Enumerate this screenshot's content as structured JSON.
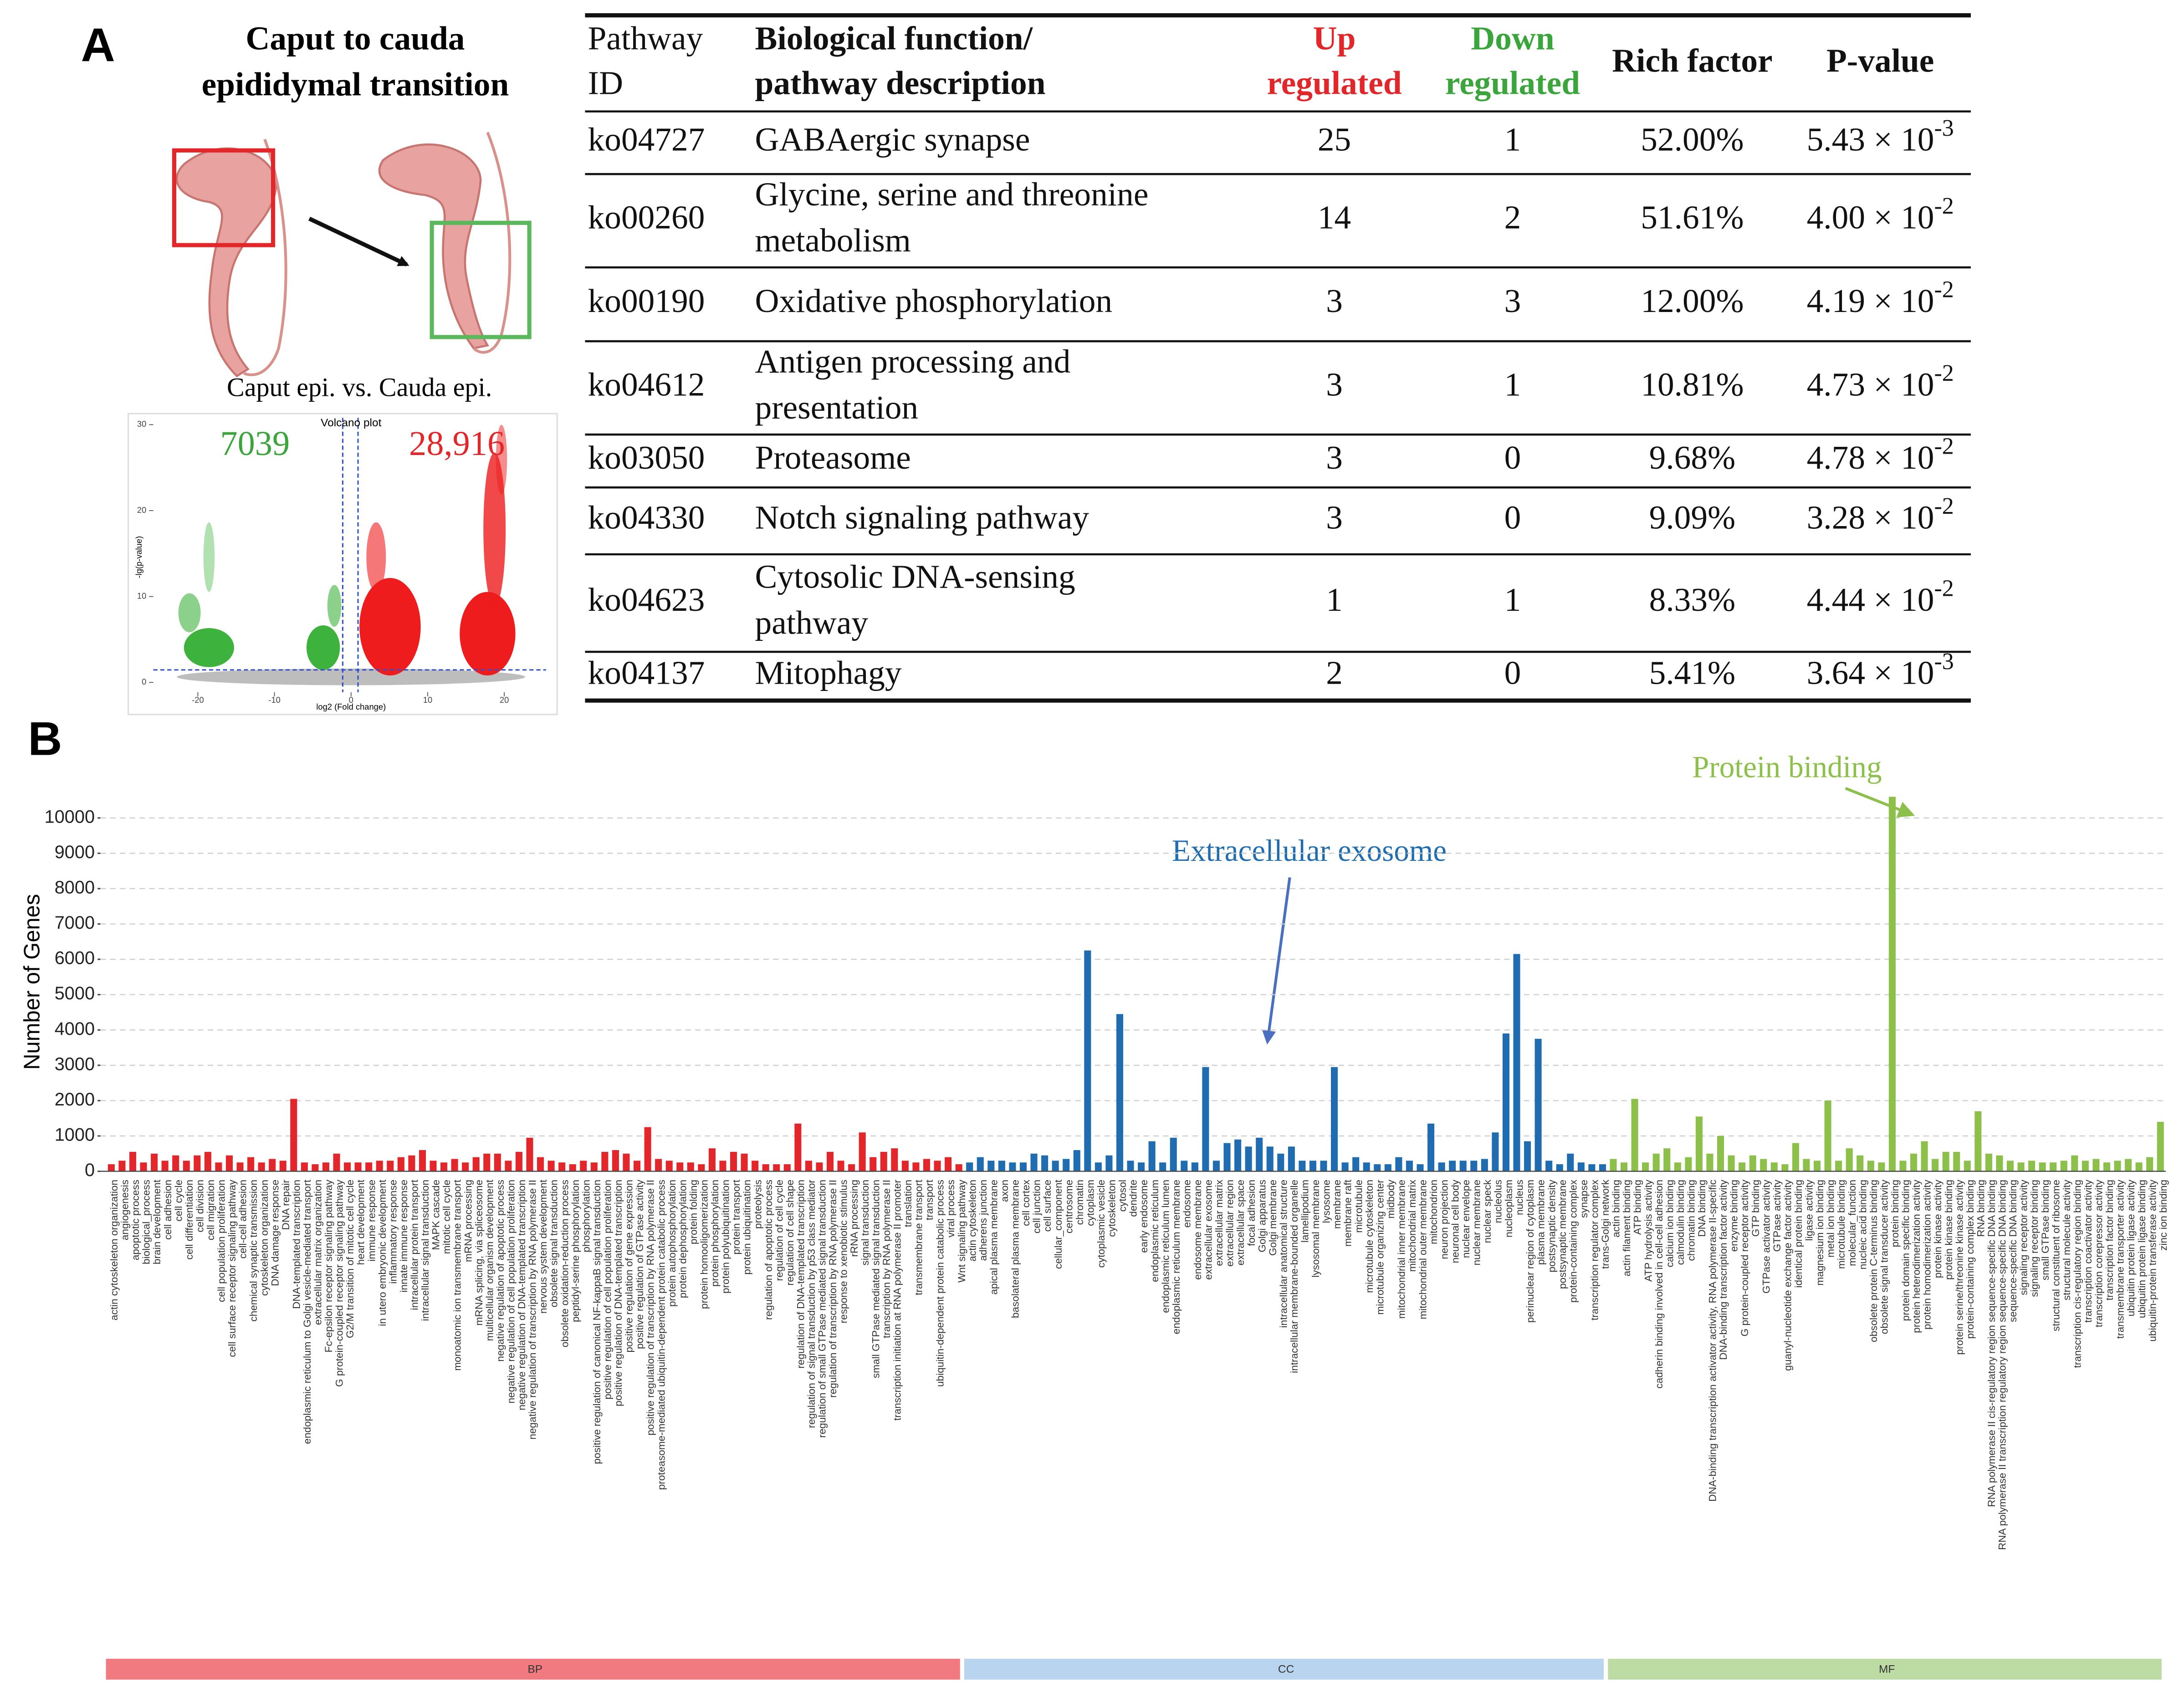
{
  "panel_a": {
    "label": "A",
    "illustration_title": [
      "Caput to cauda",
      "epididymal transition"
    ],
    "volcano": {
      "subtitle": "Caput epi. vs. Cauda epi.",
      "title": "Volcano plot",
      "down_count": "7039",
      "up_count": "28,916",
      "xlabel": "log2 (Fold change)",
      "ylabel": "-lg(p-value)",
      "xticks": [
        -20,
        -10,
        0,
        10,
        20
      ],
      "yticks": [
        0,
        10,
        20,
        30
      ]
    },
    "table": {
      "header": {
        "id": [
          "Pathway",
          "ID"
        ],
        "description": [
          "Biological function/",
          "pathway description"
        ],
        "up": [
          "Up",
          "regulated"
        ],
        "down": [
          "Down",
          "regulated"
        ],
        "rich_factor": "Rich factor",
        "p_value": "P-value"
      },
      "rows": [
        {
          "id": "ko04727",
          "description": [
            "GABAergic synapse"
          ],
          "up": 25,
          "down": 1,
          "rich_factor": "52.00%",
          "p_value": {
            "base": "5.43 × 10",
            "exponent": "-3"
          }
        },
        {
          "id": "ko00260",
          "description": [
            "Glycine, serine and threonine",
            "metabolism"
          ],
          "up": 14,
          "down": 2,
          "rich_factor": "51.61%",
          "p_value": {
            "base": "4.00 × 10",
            "exponent": "-2"
          }
        },
        {
          "id": "ko00190",
          "description": [
            "Oxidative phosphorylation"
          ],
          "up": 3,
          "down": 3,
          "rich_factor": "12.00%",
          "p_value": {
            "base": "4.19 × 10",
            "exponent": "-2"
          }
        },
        {
          "id": "ko04612",
          "description": [
            "Antigen processing and",
            "presentation"
          ],
          "up": 3,
          "down": 1,
          "rich_factor": "10.81%",
          "p_value": {
            "base": "4.73 × 10",
            "exponent": "-2"
          }
        },
        {
          "id": "ko03050",
          "description": [
            "Proteasome"
          ],
          "up": 3,
          "down": 0,
          "rich_factor": "9.68%",
          "p_value": {
            "base": "4.78 × 10",
            "exponent": "-2"
          }
        },
        {
          "id": "ko04330",
          "description": [
            "Notch signaling pathway"
          ],
          "up": 3,
          "down": 0,
          "rich_factor": "9.09%",
          "p_value": {
            "base": "3.28 × 10",
            "exponent": "-2"
          }
        },
        {
          "id": "ko04623",
          "description": [
            "Cytosolic DNA-sensing",
            "pathway"
          ],
          "up": 1,
          "down": 1,
          "rich_factor": "8.33%",
          "p_value": {
            "base": "4.44 × 10",
            "exponent": "-2"
          }
        },
        {
          "id": "ko04137",
          "description": [
            "Mitophagy"
          ],
          "up": 2,
          "down": 0,
          "rich_factor": "5.41%",
          "p_value": {
            "base": "3.64 × 10",
            "exponent": "-3"
          }
        }
      ]
    }
  },
  "panel_b": {
    "label": "B"
  },
  "chart_data": {
    "type": "bar",
    "ylabel": "Number of Genes",
    "ylim": [
      0,
      10800
    ],
    "yticks": [
      0,
      1000,
      2000,
      3000,
      4000,
      5000,
      6000,
      7000,
      8000,
      9000,
      10000
    ],
    "grid": true,
    "annotations": [
      {
        "text": "Protein binding",
        "color": "#8cc04b"
      },
      {
        "text": "Extracellular exosome",
        "color": "#1f6db0"
      }
    ],
    "groups": [
      {
        "name": "BP",
        "color": "#e3262a",
        "strip_color": "#f07a80",
        "categories": [
          "actin cytoskeleton organization",
          "angiogenesis",
          "apoptotic process",
          "biological_process",
          "brain development",
          "cell adhesion",
          "cell cycle",
          "cell differentiation",
          "cell division",
          "cell migration",
          "cell population proliferation",
          "cell surface receptor signaling pathway",
          "cell-cell adhesion",
          "chemical synaptic transmission",
          "cytoskeleton organization",
          "DNA damage response",
          "DNA repair",
          "DNA-templated transcription",
          "endoplasmic reticulum to Golgi vesicle-mediated transport",
          "extracellular matrix organization",
          "Fc-epsilon receptor signaling pathway",
          "G protein-coupled receptor signaling pathway",
          "G2/M transition of mitotic cell cycle",
          "heart development",
          "immune response",
          "in utero embryonic development",
          "inflammatory response",
          "innate immune response",
          "intracellular protein transport",
          "intracellular signal transduction",
          "MAPK cascade",
          "mitotic cell cycle",
          "monoatomic ion transmembrane transport",
          "mRNA processing",
          "mRNA splicing, via spliceosome",
          "multicellular organism development",
          "negative regulation of apoptotic process",
          "negative regulation of cell population proliferation",
          "negative regulation of DNA-templated transcription",
          "negative regulation of transcription by RNA polymerase II",
          "nervous system development",
          "obsolete signal transduction",
          "obsolete oxidation-reduction process",
          "peptidyl-serine phosphorylation",
          "phosphorylation",
          "positive regulation of canonical NF-kappaB signal transduction",
          "positive regulation of cell population proliferation",
          "positive regulation of DNA-templated transcription",
          "positive regulation of gene expression",
          "positive regulation of GTPase activity",
          "positive regulation of transcription by RNA polymerase II",
          "proteasome-mediated ubiquitin-dependent protein catabolic process",
          "protein autophosphorylation",
          "protein dephosphorylation",
          "protein folding",
          "protein homooligomerization",
          "protein phosphorylation",
          "protein polyubiquitination",
          "protein transport",
          "protein ubiquitination",
          "proteolysis",
          "regulation of apoptotic process",
          "regulation of cell cycle",
          "regulation of cell shape",
          "regulation of DNA-templated transcription",
          "regulation of signal transduction by p53 class mediator",
          "regulation of small GTPase mediated signal transduction",
          "regulation of transcription by RNA polymerase II",
          "response to xenobiotic stimulus",
          "rRNA processing",
          "signal transduction",
          "small GTPase mediated signal transduction",
          "transcription by RNA polymerase II",
          "transcription initiation at RNA polymerase II promoter",
          "translation",
          "transmembrane transport",
          "transport",
          "ubiquitin-dependent protein catabolic process",
          "viral process",
          "Wnt signaling pathway"
        ],
        "values": [
          200,
          300,
          550,
          250,
          500,
          300,
          450,
          300,
          450,
          550,
          250,
          450,
          250,
          400,
          250,
          350,
          300,
          2050,
          250,
          200,
          250,
          500,
          250,
          250,
          250,
          300,
          300,
          400,
          450,
          600,
          300,
          250,
          350,
          250,
          400,
          500,
          500,
          300,
          550,
          950,
          400,
          300,
          250,
          200,
          300,
          250,
          550,
          600,
          500,
          300,
          1250,
          350,
          300,
          250,
          250,
          200,
          650,
          300,
          550,
          500,
          300,
          200,
          200,
          200,
          1350,
          300,
          250,
          550,
          300,
          200,
          1100,
          400,
          550,
          650,
          300,
          250,
          350,
          300,
          400,
          200
        ]
      },
      {
        "name": "CC",
        "color": "#1f6db0",
        "strip_color": "#b8d4ee",
        "categories": [
          "actin cytoskeleton",
          "adherens junction",
          "apical plasma membrane",
          "axon",
          "basolateral plasma membrane",
          "cell cortex",
          "cell junction",
          "cell surface",
          "cellular_component",
          "centrosome",
          "chromatin",
          "cytoplasm",
          "cytoplasmic vesicle",
          "cytoskeleton",
          "cytosol",
          "dendrite",
          "early endosome",
          "endoplasmic reticulum",
          "endoplasmic reticulum lumen",
          "endoplasmic reticulum membrane",
          "endosome",
          "endosome membrane",
          "extracellular exosome",
          "extracellular matrix",
          "extracellular region",
          "extracellular space",
          "focal adhesion",
          "Golgi apparatus",
          "Golgi membrane",
          "intracellular anatomical structure",
          "intracellular membrane-bounded organelle",
          "lamellipodium",
          "lysosomal membrane",
          "lysosome",
          "membrane",
          "membrane raft",
          "microtubule",
          "microtubule cytoskeleton",
          "microtubule organizing center",
          "midbody",
          "mitochondrial inner membrane",
          "mitochondrial matrix",
          "mitochondrial outer membrane",
          "mitochondrion",
          "neuron projection",
          "neuronal cell body",
          "nuclear envelope",
          "nuclear membrane",
          "nuclear speck",
          "nucleolus",
          "nucleoplasm",
          "nucleus",
          "perinuclear region of cytoplasm",
          "plasma membrane",
          "postsynaptic density",
          "postsynaptic membrane",
          "protein-containing complex",
          "synapse",
          "transcription regulator complex",
          "trans-Golgi network"
        ],
        "values": [
          250,
          400,
          300,
          300,
          250,
          250,
          500,
          450,
          300,
          350,
          600,
          6250,
          250,
          450,
          4450,
          300,
          250,
          850,
          250,
          950,
          300,
          250,
          2950,
          300,
          800,
          900,
          700,
          950,
          700,
          500,
          700,
          300,
          300,
          300,
          2950,
          250,
          400,
          250,
          200,
          200,
          400,
          300,
          200,
          1350,
          250,
          300,
          300,
          300,
          350,
          1100,
          3900,
          6150,
          850,
          3750,
          300,
          200,
          500,
          250,
          200,
          200
        ]
      },
      {
        "name": "MF",
        "color": "#8cc04b",
        "strip_color": "#bcdca4",
        "categories": [
          "actin binding",
          "actin filament binding",
          "ATP binding",
          "ATP hydrolysis activity",
          "cadherin binding involved in cell-cell adhesion",
          "calcium ion binding",
          "calmodulin binding",
          "chromatin binding",
          "DNA binding",
          "DNA-binding transcription activator activity, RNA polymerase II-specific",
          "DNA-binding transcription factor activity",
          "enzyme binding",
          "G protein-coupled receptor activity",
          "GTP binding",
          "GTPase activator activity",
          "GTPase activity",
          "guanyl-nucleotide exchange factor activity",
          "identical protein binding",
          "ligase activity",
          "magnesium ion binding",
          "metal ion binding",
          "microtubule binding",
          "molecular_function",
          "nucleic acid binding",
          "obsolete protein C-terminus binding",
          "obsolete signal transducer activity",
          "protein binding",
          "protein domain specific binding",
          "protein heterodimerization activity",
          "protein homodimerization activity",
          "protein kinase activity",
          "protein kinase binding",
          "protein serine/threonine kinase activity",
          "protein-containing complex binding",
          "RNA binding",
          "RNA polymerase II cis-regulatory region sequence-specific DNA binding",
          "RNA polymerase II transcription regulatory region sequence-specific DNA binding",
          "sequence-specific DNA binding",
          "signaling receptor activity",
          "signaling receptor binding",
          "small GTPase binding",
          "structural constituent of ribosome",
          "structural molecule activity",
          "transcription cis-regulatory region binding",
          "transcription coactivator activity",
          "transcription corepressor activity",
          "transcription factor binding",
          "transmembrane transporter activity",
          "ubiquitin protein ligase activity",
          "ubiquitin protein ligase binding",
          "ubiquitin-protein transferase activity",
          "zinc ion binding"
        ],
        "values": [
          350,
          250,
          2050,
          250,
          500,
          650,
          250,
          400,
          1550,
          500,
          1000,
          450,
          250,
          450,
          350,
          250,
          200,
          800,
          350,
          300,
          2000,
          300,
          650,
          450,
          300,
          250,
          10600,
          300,
          500,
          850,
          350,
          550,
          550,
          300,
          1700,
          500,
          450,
          300,
          250,
          300,
          250,
          250,
          300,
          450,
          300,
          350,
          250,
          300,
          350,
          250,
          400,
          1400
        ]
      }
    ]
  }
}
